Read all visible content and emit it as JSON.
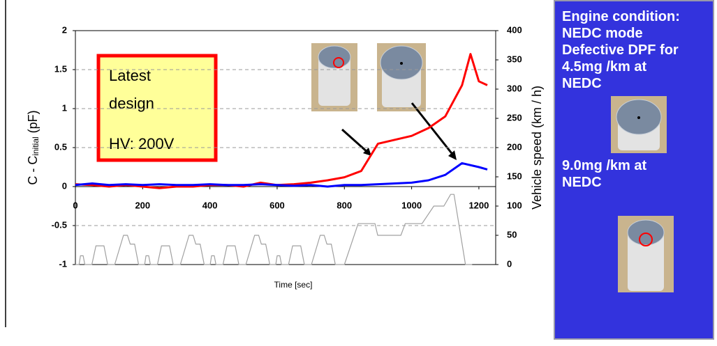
{
  "chart_data": {
    "type": "line",
    "xlabel": "Time [sec]",
    "ylabel": {
      "main": "C - C",
      "sub": "initial",
      "tail": " (pF)"
    },
    "y2label": "Vehicle speed (km / h)",
    "xlim": [
      0,
      1250
    ],
    "xticks": [
      0,
      200,
      400,
      600,
      800,
      1000,
      1200
    ],
    "ylim": [
      -1,
      2
    ],
    "yticks": [
      -1,
      -0.5,
      0,
      0.5,
      1,
      1.5,
      2
    ],
    "y2lim": [
      0,
      400
    ],
    "y2ticks": [
      0,
      50,
      100,
      150,
      200,
      250,
      300,
      350,
      400
    ],
    "grid": true,
    "annotation": {
      "line1": "Latest",
      "line2": "design",
      "line3": "HV: 200V"
    },
    "series": [
      {
        "color": "#ff0000",
        "x": [
          0,
          50,
          100,
          150,
          200,
          250,
          300,
          350,
          400,
          450,
          500,
          550,
          600,
          650,
          700,
          750,
          800,
          850,
          900,
          950,
          1000,
          1050,
          1100,
          1150,
          1175,
          1200,
          1225
        ],
        "values": [
          0.03,
          0.02,
          0.0,
          0.02,
          0.0,
          -0.02,
          0.0,
          0.0,
          0.02,
          0.02,
          0.0,
          0.05,
          0.02,
          0.03,
          0.05,
          0.08,
          0.12,
          0.2,
          0.55,
          0.6,
          0.65,
          0.75,
          0.9,
          1.3,
          1.7,
          1.35,
          1.3
        ]
      },
      {
        "color": "#0000ff",
        "x": [
          0,
          50,
          100,
          150,
          200,
          250,
          300,
          350,
          400,
          450,
          500,
          550,
          600,
          650,
          700,
          750,
          800,
          850,
          900,
          950,
          1000,
          1050,
          1100,
          1150,
          1200,
          1225
        ],
        "values": [
          0.02,
          0.04,
          0.02,
          0.03,
          0.02,
          0.03,
          0.02,
          0.02,
          0.03,
          0.02,
          0.02,
          0.03,
          0.02,
          0.01,
          0.02,
          0.0,
          0.02,
          0.02,
          0.03,
          0.04,
          0.05,
          0.08,
          0.15,
          0.3,
          0.25,
          0.22
        ]
      },
      {
        "color": "#a0a0a0",
        "axis": "y2",
        "x": [
          0,
          11,
          15,
          23,
          28,
          49,
          61,
          85,
          96,
          117,
          143,
          155,
          163,
          176,
          188,
          195,
          206,
          210,
          218,
          223,
          244,
          256,
          280,
          291,
          312,
          338,
          350,
          358,
          371,
          383,
          390,
          401,
          405,
          413,
          418,
          439,
          451,
          475,
          486,
          507,
          533,
          545,
          553,
          566,
          578,
          585,
          596,
          600,
          608,
          613,
          634,
          646,
          670,
          681,
          702,
          728,
          740,
          748,
          761,
          773,
          780,
          800,
          841,
          891,
          899,
          968,
          981,
          1031,
          1066,
          1096,
          1116,
          1126,
          1160,
          1180
        ],
        "values": [
          0,
          0,
          15,
          15,
          0,
          0,
          32,
          32,
          0,
          0,
          50,
          50,
          35,
          35,
          0,
          0,
          0,
          15,
          15,
          0,
          0,
          32,
          32,
          0,
          0,
          50,
          50,
          35,
          35,
          0,
          0,
          0,
          15,
          15,
          0,
          0,
          32,
          32,
          0,
          0,
          50,
          50,
          35,
          35,
          0,
          0,
          0,
          15,
          15,
          0,
          0,
          32,
          32,
          0,
          0,
          50,
          50,
          35,
          35,
          0,
          0,
          0,
          70,
          70,
          50,
          50,
          70,
          70,
          100,
          100,
          120,
          120,
          0,
          0
        ]
      }
    ]
  },
  "side_panel": {
    "lines": [
      "Engine condition:",
      "NEDC mode",
      "Defective DPF for",
      "4.5mg /km at",
      "NEDC"
    ],
    "lines2": [
      "9.0mg /km at",
      "NEDC"
    ]
  }
}
